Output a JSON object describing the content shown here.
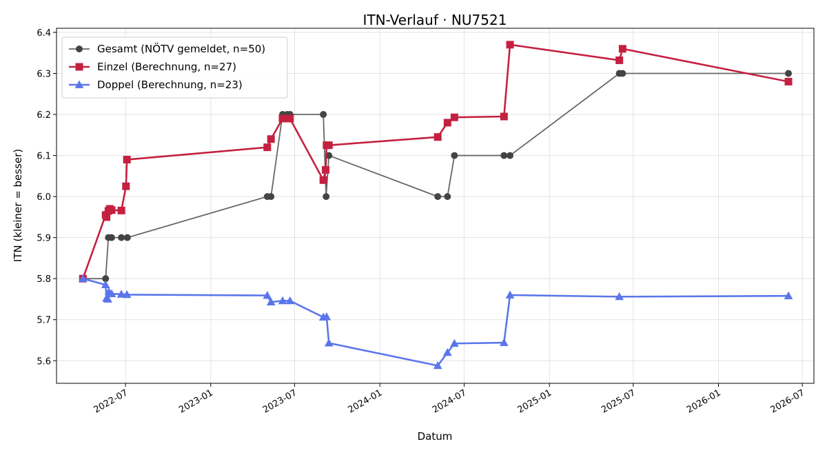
{
  "chart_data": {
    "type": "line",
    "title": "ITN-Verlauf · NU7521",
    "xlabel": "Datum",
    "ylabel": "ITN  (kleiner = besser)",
    "xlim": [
      "2022-02-02",
      "2026-07-26"
    ],
    "ylim": [
      5.545,
      6.41
    ],
    "x_ticks": [
      "2022-07",
      "2023-01",
      "2023-07",
      "2024-01",
      "2024-07",
      "2025-01",
      "2025-07",
      "2026-01",
      "2026-07"
    ],
    "y_ticks": [
      5.6,
      5.7,
      5.8,
      5.9,
      6.0,
      6.1,
      6.2,
      6.3,
      6.4
    ],
    "grid": true,
    "legend_position": "top-left",
    "series": [
      {
        "name": "Gesamt (NÖTV gemeldet, n=50)",
        "color": "#666666",
        "marker": "circle",
        "points": [
          [
            "2022-03-31",
            5.8
          ],
          [
            "2022-05-19",
            5.8
          ],
          [
            "2022-05-25",
            5.9
          ],
          [
            "2022-06-01",
            5.9
          ],
          [
            "2022-06-22",
            5.9
          ],
          [
            "2022-07-05",
            5.9
          ],
          [
            "2023-05-03",
            6.0
          ],
          [
            "2023-05-11",
            6.0
          ],
          [
            "2023-06-05",
            6.2
          ],
          [
            "2023-06-15",
            6.2
          ],
          [
            "2023-06-21",
            6.2
          ],
          [
            "2023-09-01",
            6.2
          ],
          [
            "2023-09-07",
            6.0
          ],
          [
            "2023-09-13",
            6.1
          ],
          [
            "2024-05-05",
            6.0
          ],
          [
            "2024-05-26",
            6.0
          ],
          [
            "2024-06-10",
            6.1
          ],
          [
            "2024-09-25",
            6.1
          ],
          [
            "2024-10-08",
            6.1
          ],
          [
            "2025-06-01",
            6.3
          ],
          [
            "2025-06-08",
            6.3
          ],
          [
            "2026-06-01",
            6.3
          ]
        ]
      },
      {
        "name": "Einzel (Berechnung, n=27)",
        "color": "#c42040",
        "marker": "square",
        "points": [
          [
            "2022-03-31",
            5.8
          ],
          [
            "2022-05-19",
            5.955
          ],
          [
            "2022-05-21",
            5.95
          ],
          [
            "2022-05-25",
            5.965
          ],
          [
            "2022-05-28",
            5.97
          ],
          [
            "2022-06-01",
            5.967
          ],
          [
            "2022-06-22",
            5.966
          ],
          [
            "2022-07-02",
            6.025
          ],
          [
            "2022-07-04",
            6.09
          ],
          [
            "2023-05-03",
            6.12
          ],
          [
            "2023-05-11",
            6.14
          ],
          [
            "2023-06-05",
            6.19
          ],
          [
            "2023-06-15",
            6.19
          ],
          [
            "2023-06-21",
            6.19
          ],
          [
            "2023-09-01",
            6.04
          ],
          [
            "2023-09-06",
            6.065
          ],
          [
            "2023-09-08",
            6.125
          ],
          [
            "2023-09-13",
            6.125
          ],
          [
            "2024-05-05",
            6.145
          ],
          [
            "2024-05-26",
            6.18
          ],
          [
            "2024-06-10",
            6.193
          ],
          [
            "2024-09-25",
            6.195
          ],
          [
            "2024-10-08",
            6.37
          ],
          [
            "2025-06-01",
            6.332
          ],
          [
            "2025-06-08",
            6.36
          ],
          [
            "2026-06-01",
            6.28
          ]
        ]
      },
      {
        "name": "Doppel (Berechnung, n=23)",
        "color": "#5b76ea",
        "marker": "triangle",
        "points": [
          [
            "2022-03-31",
            5.8
          ],
          [
            "2022-05-19",
            5.785
          ],
          [
            "2022-05-21",
            5.752
          ],
          [
            "2022-05-24",
            5.75
          ],
          [
            "2022-05-26",
            5.768
          ],
          [
            "2022-06-01",
            5.763
          ],
          [
            "2022-06-22",
            5.762
          ],
          [
            "2022-07-04",
            5.761
          ],
          [
            "2023-05-03",
            5.759
          ],
          [
            "2023-05-11",
            5.743
          ],
          [
            "2023-06-05",
            5.746
          ],
          [
            "2023-06-21",
            5.746
          ],
          [
            "2023-09-01",
            5.706
          ],
          [
            "2023-09-08",
            5.707
          ],
          [
            "2023-09-13",
            5.643
          ],
          [
            "2024-05-05",
            5.588
          ],
          [
            "2024-05-26",
            5.62
          ],
          [
            "2024-06-10",
            5.642
          ],
          [
            "2024-09-25",
            5.644
          ],
          [
            "2024-10-08",
            5.76
          ],
          [
            "2025-06-01",
            5.756
          ],
          [
            "2026-06-01",
            5.758
          ]
        ]
      }
    ]
  }
}
